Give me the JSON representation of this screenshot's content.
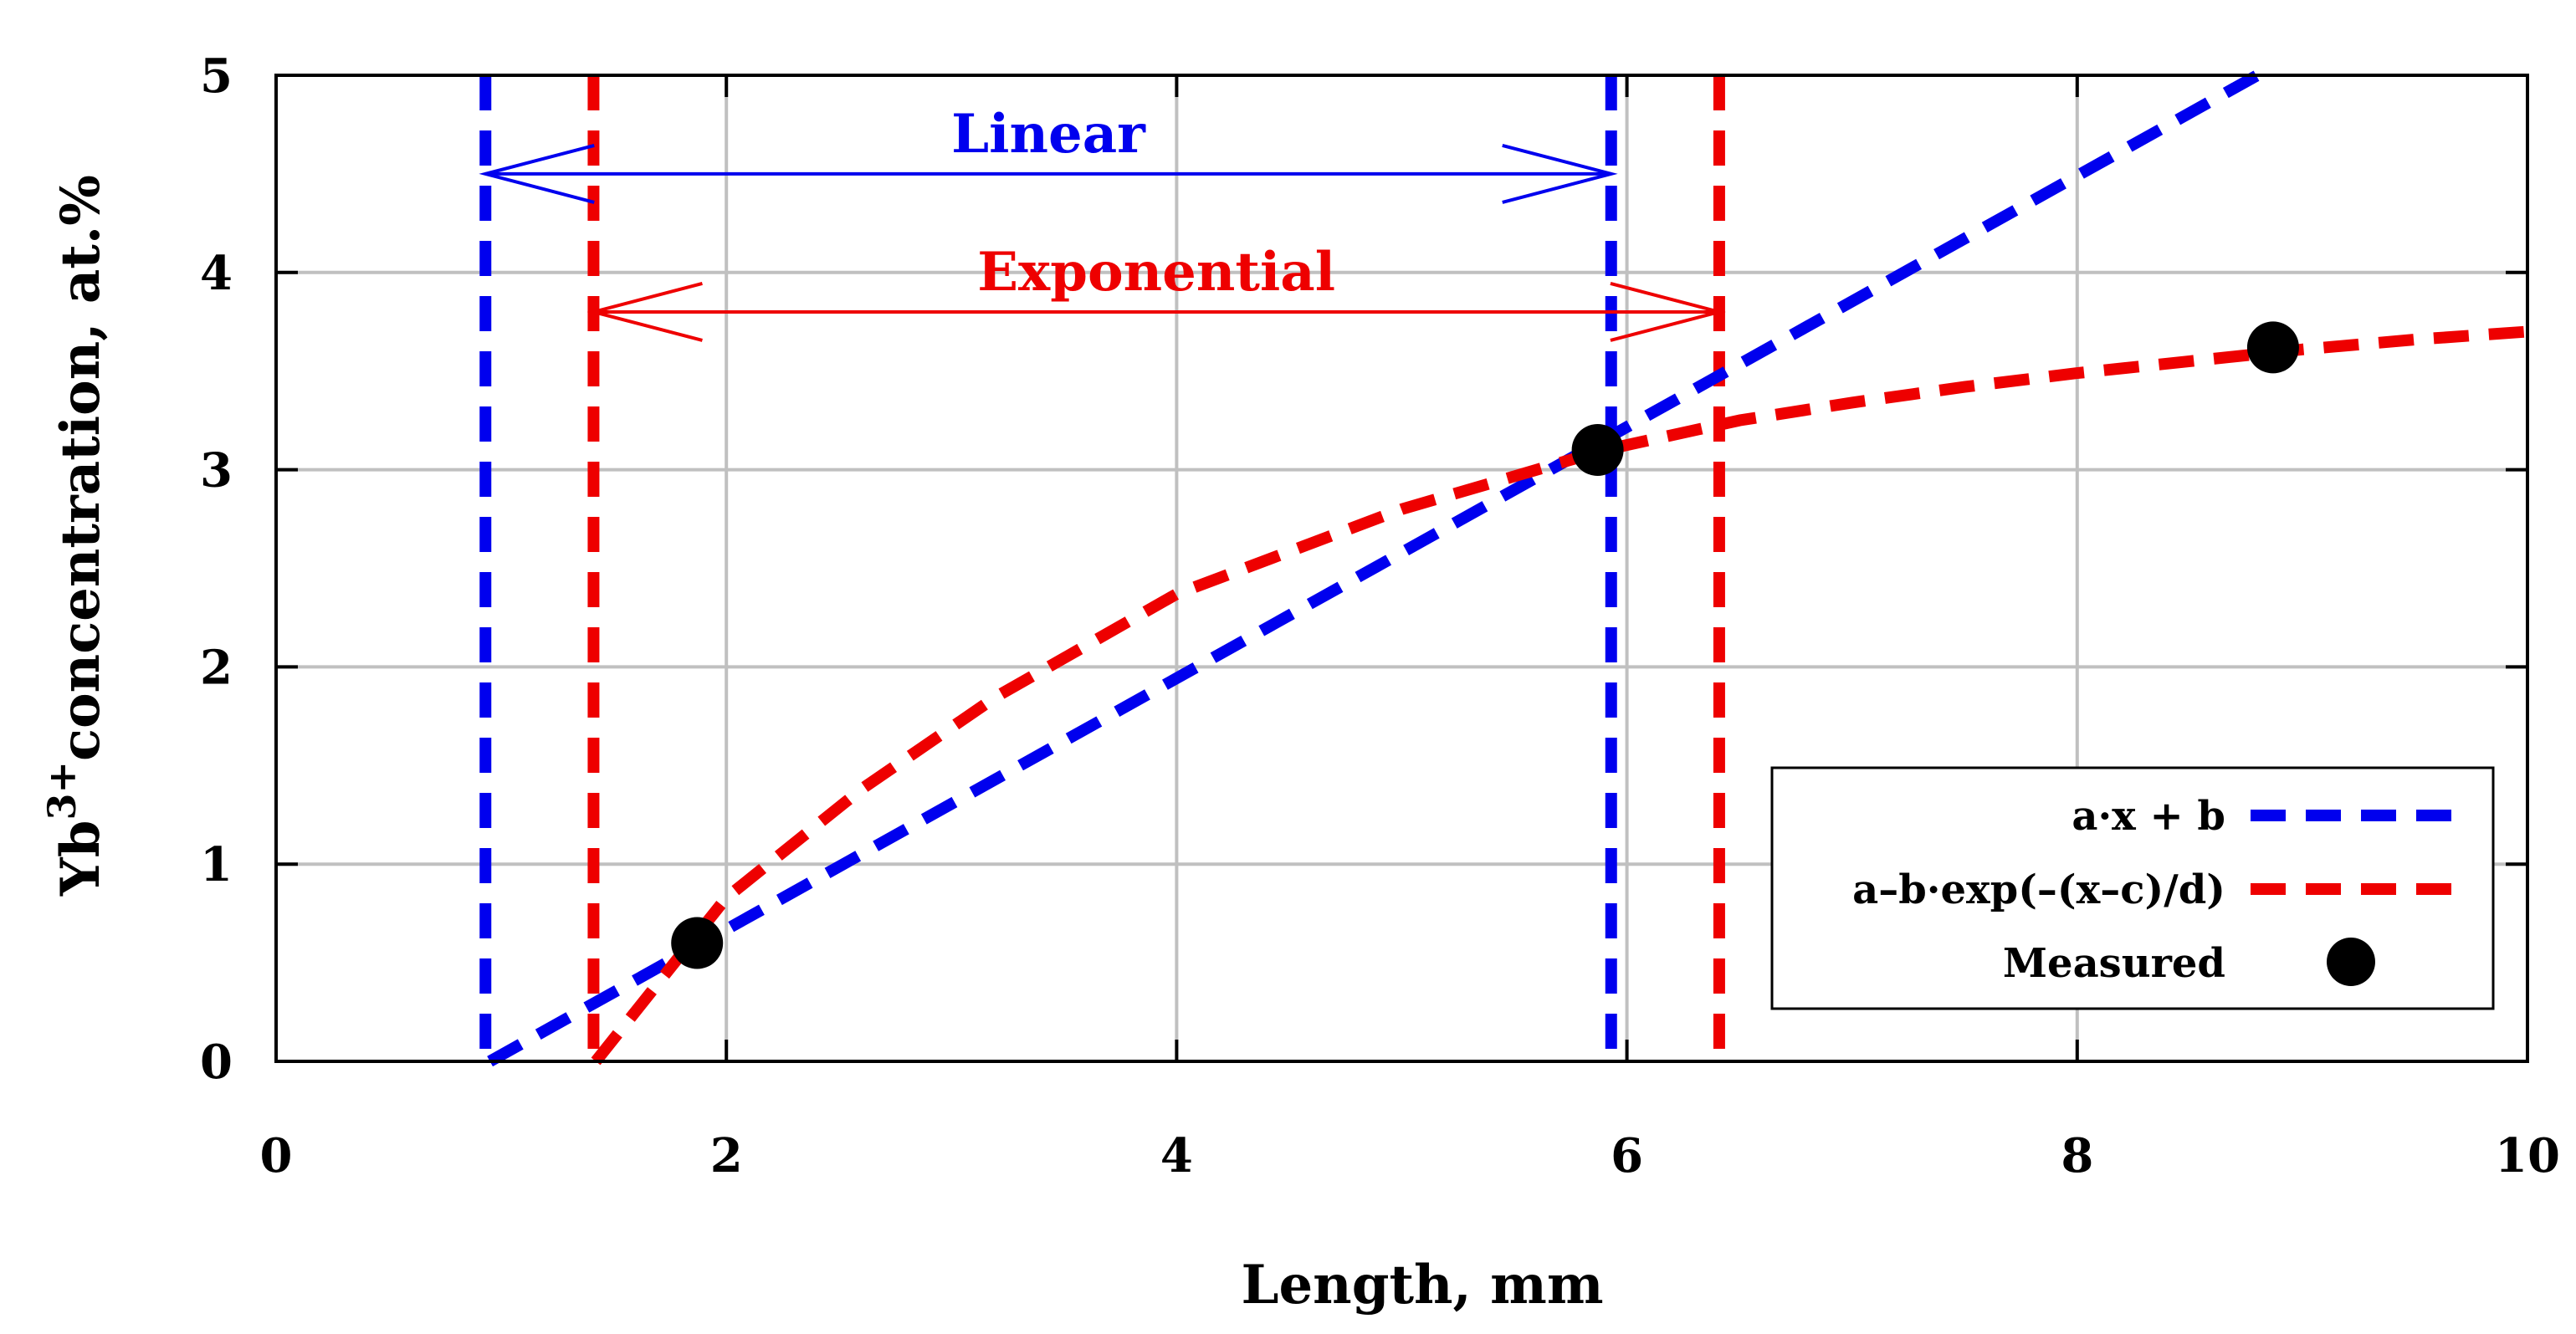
{
  "chart_data": {
    "type": "line",
    "xlabel": "Length, mm",
    "ylabel_main": "Yb",
    "ylabel_sup": "3+",
    "ylabel_rest": "concentration, at.%",
    "xlim": [
      0,
      10
    ],
    "ylim": [
      0,
      5
    ],
    "xticks": [
      0,
      2,
      4,
      6,
      8,
      10
    ],
    "yticks": [
      0,
      1,
      2,
      3,
      4,
      5
    ],
    "xtick_labels": [
      "0",
      "2",
      "4",
      "6",
      "8",
      "10"
    ],
    "ytick_labels": [
      "0",
      "1",
      "2",
      "3",
      "4",
      "5"
    ],
    "grid": true,
    "colors": {
      "linear": "#0000ee",
      "exponential": "#ee0000",
      "measured": "#000000"
    },
    "series": [
      {
        "name": "a·x + b",
        "kind": "linear",
        "x": [
          0.95,
          8.8
        ],
        "y": [
          0.0,
          5.0
        ]
      },
      {
        "name": "a–b·exp(–(x–c)/d)",
        "kind": "exponential",
        "x": [
          1.42,
          2.0,
          2.6,
          3.2,
          4.0,
          5.0,
          5.9,
          6.5,
          7.0,
          7.5,
          8.0,
          8.5,
          9.0,
          9.5,
          10.0
        ],
        "y": [
          0.0,
          0.83,
          1.38,
          1.85,
          2.37,
          2.8,
          3.1,
          3.25,
          3.34,
          3.42,
          3.49,
          3.55,
          3.61,
          3.66,
          3.7
        ]
      },
      {
        "name": "Measured",
        "kind": "scatter",
        "x": [
          1.87,
          5.87,
          8.87
        ],
        "y": [
          0.6,
          3.1,
          3.62
        ]
      }
    ],
    "vlines": [
      {
        "x": 0.93,
        "color_key": "linear"
      },
      {
        "x": 5.93,
        "color_key": "linear"
      },
      {
        "x": 1.41,
        "color_key": "exponential"
      },
      {
        "x": 6.41,
        "color_key": "exponential"
      }
    ],
    "annotations": [
      {
        "label": "Linear",
        "from": 0.93,
        "to": 5.93,
        "y": 4.5,
        "color_key": "linear"
      },
      {
        "label": "Exponential",
        "from": 1.41,
        "to": 6.41,
        "y": 3.8,
        "color_key": "exponential"
      }
    ],
    "legend": {
      "placement": "bottom-right",
      "entries": [
        "a·x + b",
        "a–b·exp(–(x–c)/d)",
        "Measured"
      ]
    }
  }
}
